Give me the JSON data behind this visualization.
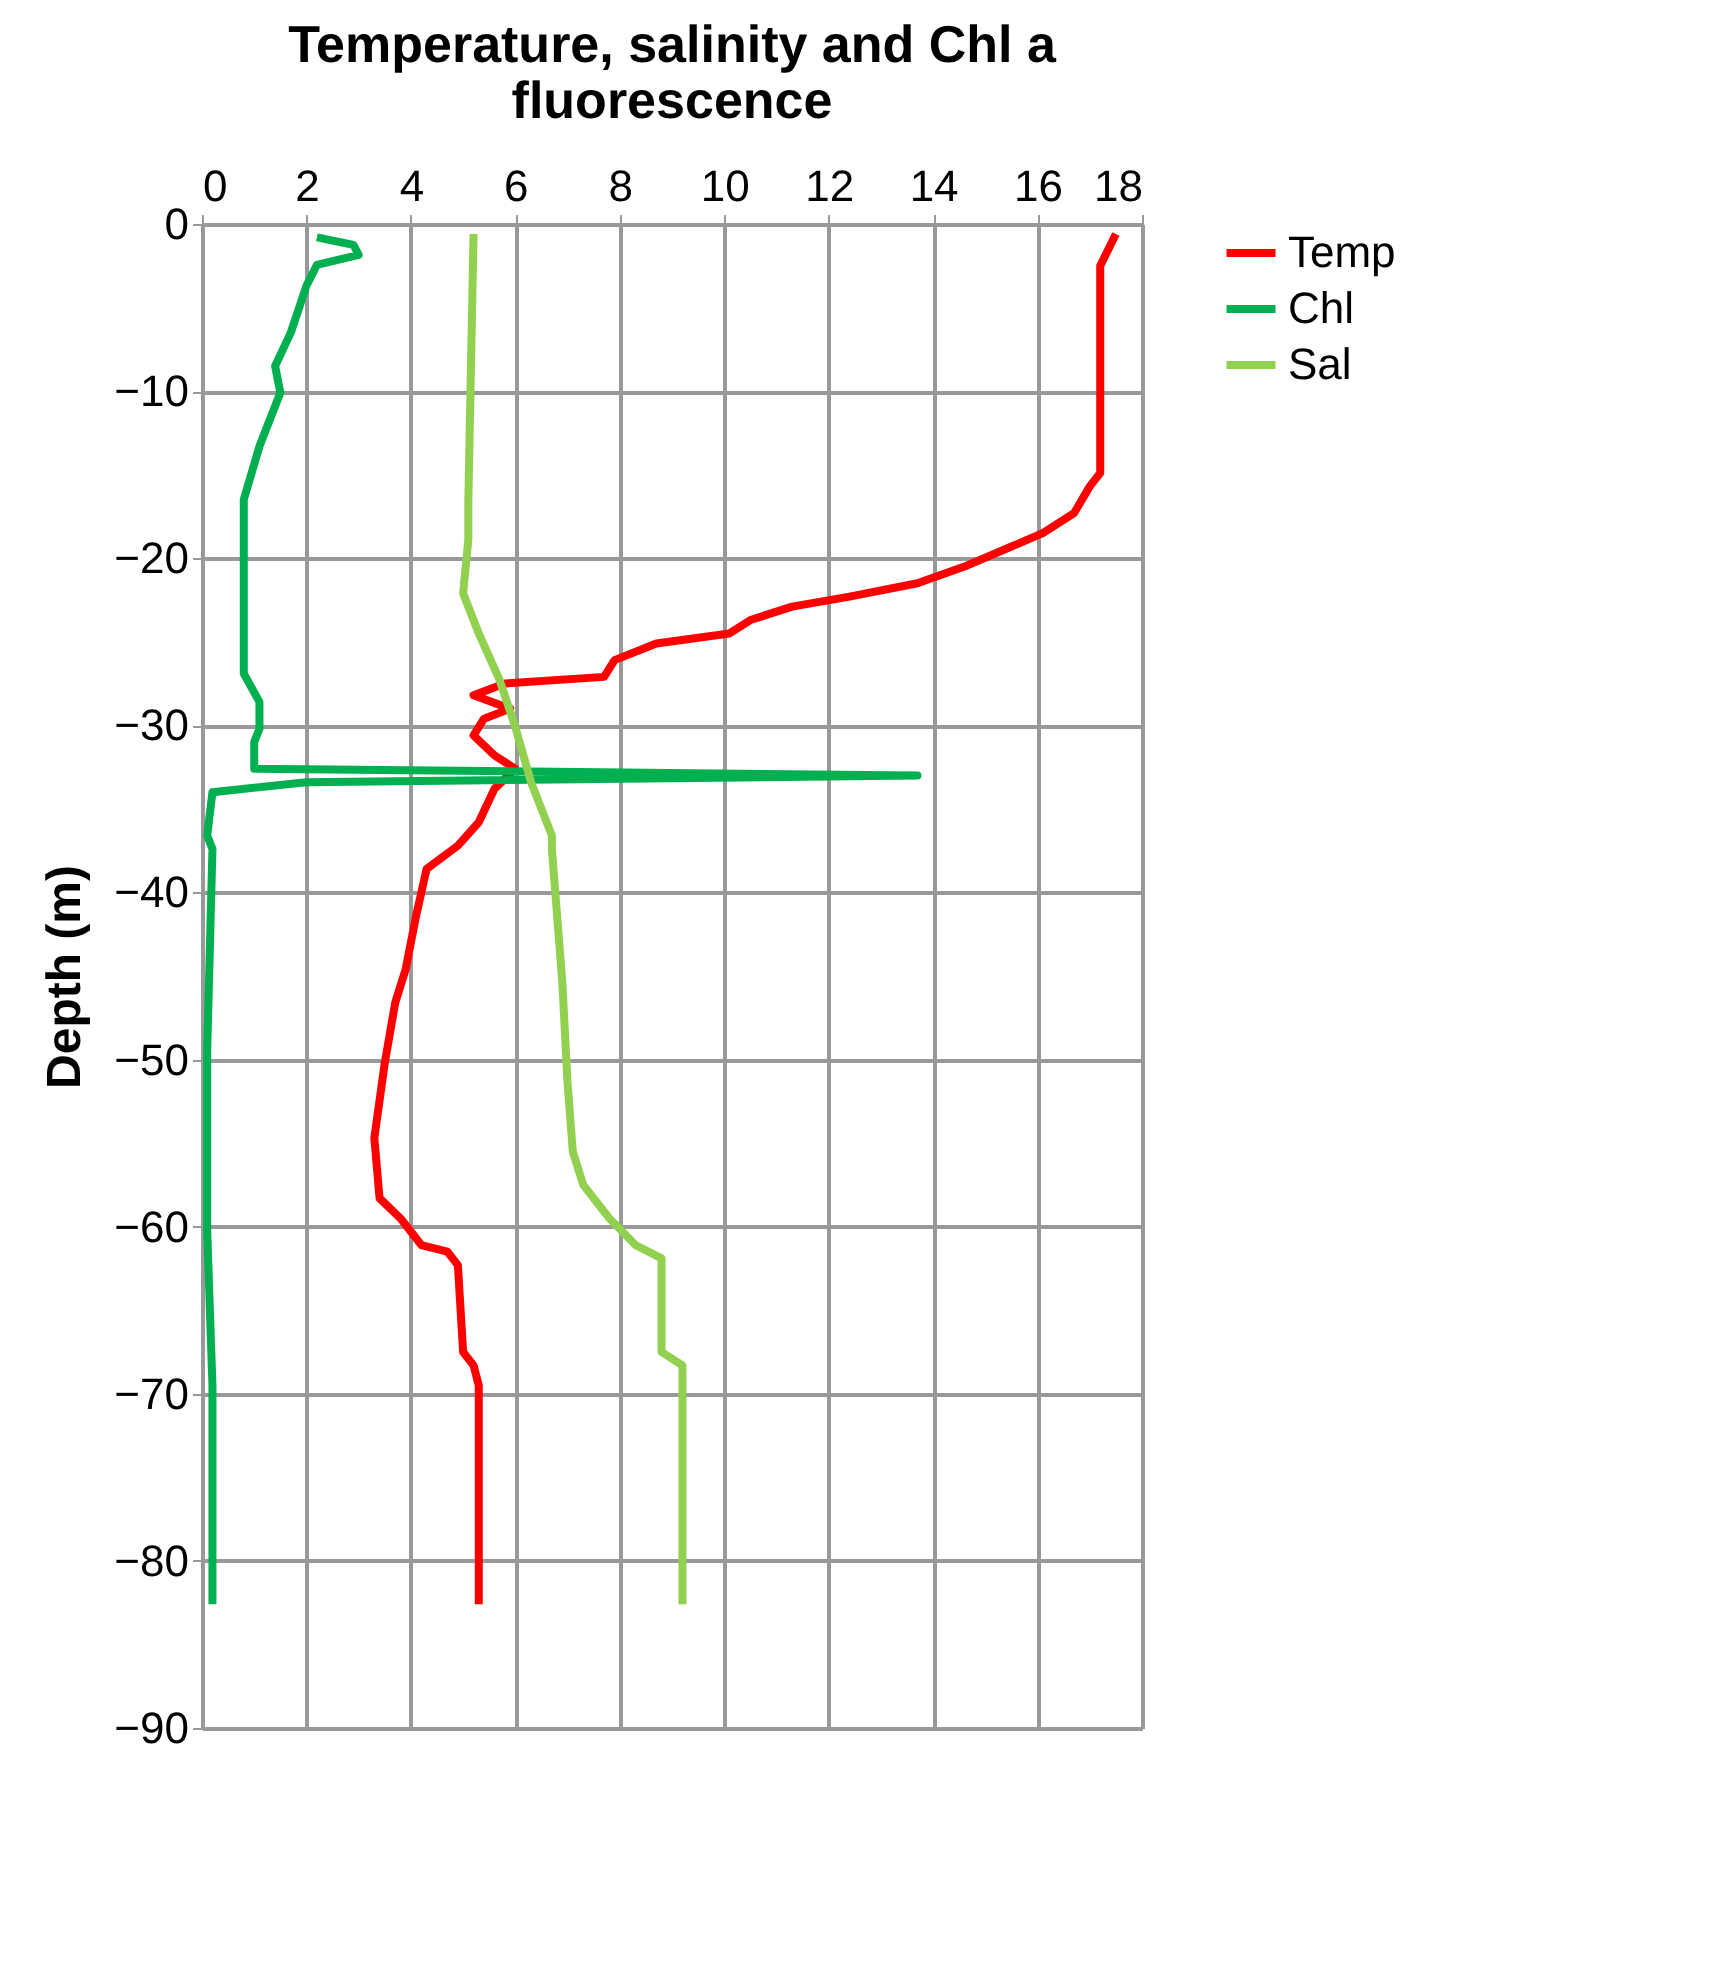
{
  "chart_data": {
    "type": "line",
    "orientation": "horizontal",
    "title": "Temperature, salinity and Chl a fluorescence",
    "ylabel": "Depth (m)",
    "xlim": [
      0,
      18
    ],
    "xticks": [
      0,
      2,
      4,
      6,
      8,
      10,
      12,
      14,
      16,
      18
    ],
    "ylim": [
      -90,
      0
    ],
    "yticks": [
      0,
      -10,
      -20,
      -30,
      -40,
      -50,
      -60,
      -70,
      -80,
      -90
    ],
    "grid": true,
    "legend": "right",
    "line_style": "solid",
    "series": [
      {
        "name": "Temp",
        "color": "#ff0000",
        "x": [
          -0.6,
          -2.5,
          -10.1,
          -14.9,
          -15.7,
          -17.3,
          -18.5,
          -19.3,
          -20.5,
          -21.5,
          -22.3,
          -22.9,
          -23.7,
          -24.5,
          -25.1,
          -26.1,
          -27.1,
          -27.5,
          -28.2,
          -29.0,
          -29.6,
          -30.6,
          -31.8,
          -32.6,
          -33.8,
          -35.8,
          -37.2,
          -38.6,
          -41.4,
          -44.6,
          -46.6,
          -50.2,
          -54.7,
          -58.3,
          -59.5,
          -61.1,
          -61.5,
          -62.3,
          -67.5,
          -68.3,
          -69.5,
          -82.6
        ],
        "values": [
          17.5,
          17.2,
          17.2,
          17.2,
          17.0,
          16.7,
          16.1,
          15.5,
          14.6,
          13.7,
          12.4,
          11.3,
          10.5,
          10.1,
          8.7,
          7.9,
          7.7,
          5.8,
          5.2,
          5.9,
          5.4,
          5.2,
          5.6,
          6.0,
          5.6,
          5.3,
          4.9,
          4.3,
          4.1,
          3.9,
          3.7,
          3.5,
          3.3,
          3.4,
          3.8,
          4.2,
          4.7,
          4.9,
          5.0,
          5.2,
          5.3,
          5.3
        ]
      },
      {
        "name": "Chl",
        "color": "#00b050",
        "x": [
          -0.8,
          -1.25,
          -1.85,
          -2.45,
          -3.7,
          -6.5,
          -8.5,
          -10.1,
          -13.3,
          -16.5,
          -19.7,
          -23.3,
          -26.9,
          -28.6,
          -30.2,
          -31.0,
          -32.6,
          -33.0,
          -33.4,
          -34.0,
          -36.6,
          -37.4,
          -49.4,
          -60.3,
          -69.5,
          -82.6
        ],
        "values": [
          2.2,
          2.9,
          3.0,
          2.2,
          2.0,
          1.7,
          1.4,
          1.5,
          1.1,
          0.8,
          0.8,
          0.8,
          0.8,
          1.1,
          1.1,
          1.0,
          1.0,
          13.7,
          2.0,
          0.2,
          0.1,
          0.2,
          0.1,
          0.1,
          0.2,
          0.2
        ]
      },
      {
        "name": "Sal",
        "color": "#92d050",
        "x": [
          -0.6,
          -16.5,
          -18.9,
          -22.1,
          -24.5,
          -27.3,
          -30.1,
          -33.4,
          -36.6,
          -37.4,
          -45.4,
          -51.4,
          -55.5,
          -57.5,
          -59.5,
          -61.1,
          -61.9,
          -67.5,
          -68.3,
          -82.6
        ],
        "values": [
          5.2,
          5.1,
          5.1,
          5.0,
          5.3,
          5.7,
          6.0,
          6.3,
          6.7,
          6.7,
          6.9,
          7.0,
          7.1,
          7.3,
          7.8,
          8.3,
          8.8,
          8.8,
          9.2,
          9.2
        ]
      }
    ]
  }
}
